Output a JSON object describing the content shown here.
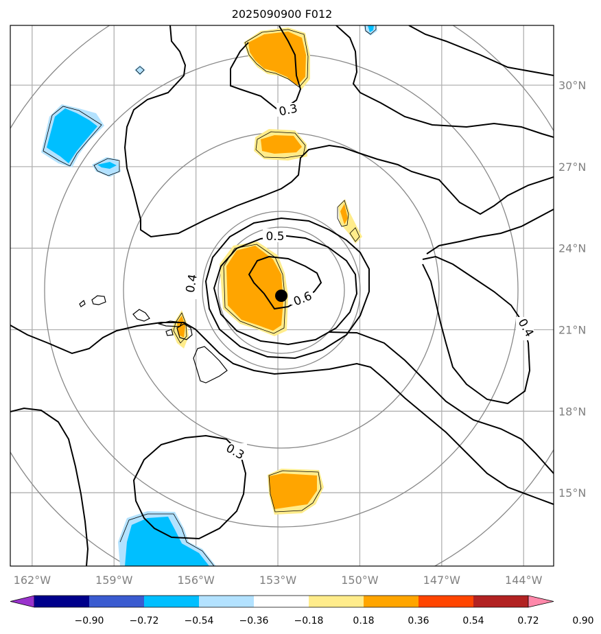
{
  "chart_data": {
    "type": "contour-map",
    "title": "2025090900 F012",
    "x_ticks": [
      "162°W",
      "159°W",
      "156°W",
      "153°W",
      "150°W",
      "147°W",
      "144°W"
    ],
    "y_ticks": [
      "30°N",
      "27°N",
      "24°N",
      "21°N",
      "18°N",
      "15°N"
    ],
    "x_range": [
      "162.8°W",
      "142.9°W"
    ],
    "y_range": [
      "12.3°N",
      "32.2°N"
    ],
    "grid": true,
    "contour_levels": [
      "0.3",
      "0.4",
      "0.5",
      "0.6",
      "0.3",
      "0.4"
    ],
    "colorbar_ticks": [
      "−0.90",
      "−0.72",
      "−0.54",
      "−0.36",
      "−0.18",
      "0.18",
      "0.36",
      "0.54",
      "0.72",
      "0.90"
    ],
    "colorbar_colors": [
      "#9932cc",
      "#00008b",
      "#3a5bd0",
      "#00bfff",
      "#b3e2ff",
      "#ffffff",
      "#ffec8b",
      "#ffa500",
      "#ff4500",
      "#b22222",
      "#ff88aa"
    ],
    "shading_colors": {
      "pos_light": "#ffec8b",
      "pos_mid": "#ffa500",
      "neg_light": "#b3e2ff",
      "neg_mid": "#00bfff"
    },
    "storm_center": {
      "lon": -152.8,
      "lat": 22.2
    },
    "range_rings_center": {
      "lon": -152.8,
      "lat": 22.2
    },
    "range_rings_count": 4
  }
}
